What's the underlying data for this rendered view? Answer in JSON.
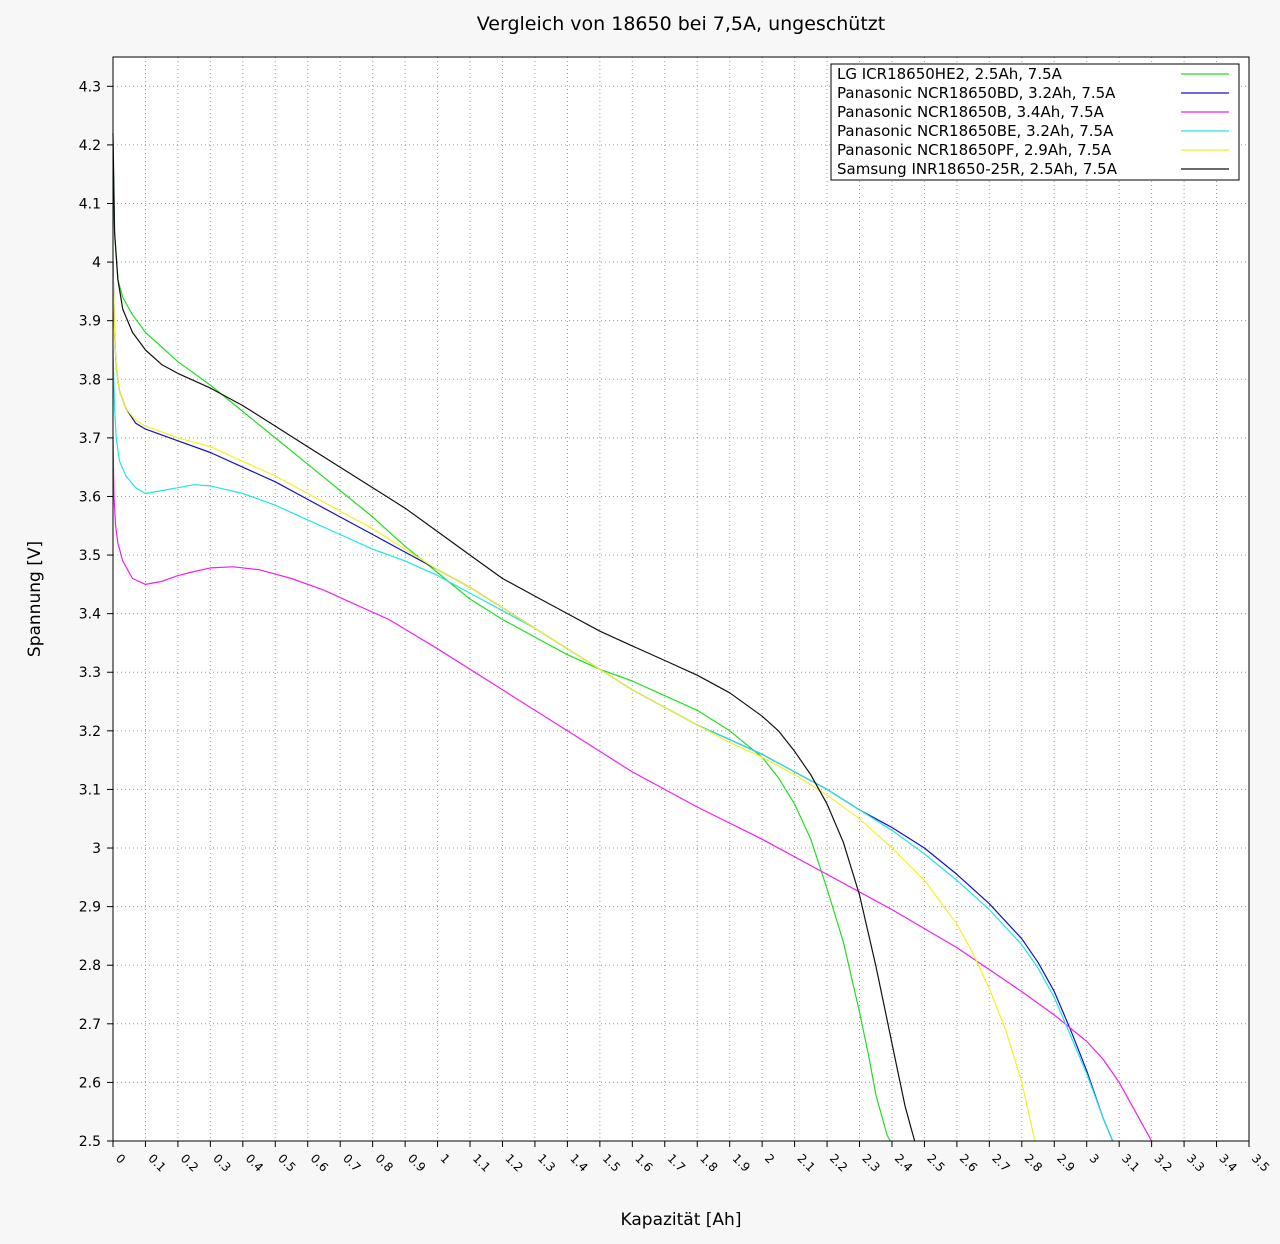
{
  "chart_data": {
    "type": "line",
    "title": "Vergleich von 18650 bei 7,5A, ungeschützt",
    "xlabel": "Kapazität [Ah]",
    "ylabel": "Spannung [V]",
    "xlim": [
      0,
      3.5
    ],
    "ylim": [
      2.5,
      4.35
    ],
    "x_ticks": [
      "0",
      "0.1",
      "0.2",
      "0.3",
      "0.4",
      "0.5",
      "0.6",
      "0.7",
      "0.8",
      "0.9",
      "1",
      "1.1",
      "1.2",
      "1.3",
      "1.4",
      "1.5",
      "1.6",
      "1.7",
      "1.8",
      "1.9",
      "2",
      "2.1",
      "2.2",
      "2.3",
      "2.4",
      "2.5",
      "2.6",
      "2.7",
      "2.8",
      "2.9",
      "3",
      "3.1",
      "3.2",
      "3.3",
      "3.4",
      "3.5"
    ],
    "y_ticks": [
      "2.5",
      "2.6",
      "2.7",
      "2.8",
      "2.9",
      "3",
      "3.1",
      "3.2",
      "3.3",
      "3.4",
      "3.5",
      "3.6",
      "3.7",
      "3.8",
      "3.9",
      "4",
      "4.1",
      "4.2",
      "4.3"
    ],
    "grid": true,
    "legend_position": "top-right",
    "series": [
      {
        "name": "LG ICR18650HE2, 2.5Ah, 7.5A",
        "color": "#22dd22",
        "x": [
          0,
          0.005,
          0.015,
          0.03,
          0.06,
          0.1,
          0.15,
          0.2,
          0.3,
          0.4,
          0.5,
          0.6,
          0.7,
          0.8,
          0.9,
          1.0,
          1.1,
          1.2,
          1.3,
          1.4,
          1.5,
          1.6,
          1.7,
          1.8,
          1.9,
          2.0,
          2.05,
          2.1,
          2.15,
          2.2,
          2.25,
          2.3,
          2.33,
          2.35,
          2.37,
          2.385,
          2.395
        ],
        "y": [
          4.2,
          4.05,
          3.97,
          3.94,
          3.91,
          3.88,
          3.855,
          3.83,
          3.79,
          3.745,
          3.7,
          3.655,
          3.61,
          3.565,
          3.515,
          3.47,
          3.425,
          3.39,
          3.36,
          3.33,
          3.305,
          3.285,
          3.26,
          3.235,
          3.2,
          3.155,
          3.12,
          3.075,
          3.015,
          2.93,
          2.84,
          2.72,
          2.64,
          2.58,
          2.54,
          2.51,
          2.5
        ]
      },
      {
        "name": "Panasonic NCR18650BD, 3.2Ah, 7.5A",
        "color": "#1010cc",
        "x": [
          0,
          0.005,
          0.01,
          0.02,
          0.04,
          0.07,
          0.1,
          0.15,
          0.2,
          0.3,
          0.4,
          0.5,
          0.6,
          0.7,
          0.8,
          0.9,
          1.0,
          1.1,
          1.2,
          1.3,
          1.4,
          1.5,
          1.6,
          1.7,
          1.8,
          1.9,
          2.0,
          2.1,
          2.2,
          2.3,
          2.4,
          2.5,
          2.6,
          2.7,
          2.8,
          2.85,
          2.9,
          2.95,
          3.0,
          3.05,
          3.08
        ],
        "y": [
          4.0,
          3.88,
          3.82,
          3.78,
          3.75,
          3.725,
          3.715,
          3.705,
          3.695,
          3.675,
          3.65,
          3.625,
          3.595,
          3.565,
          3.535,
          3.505,
          3.475,
          3.445,
          3.41,
          3.375,
          3.34,
          3.305,
          3.27,
          3.24,
          3.21,
          3.185,
          3.16,
          3.13,
          3.1,
          3.065,
          3.035,
          3.0,
          2.955,
          2.905,
          2.845,
          2.805,
          2.755,
          2.69,
          2.62,
          2.54,
          2.5
        ]
      },
      {
        "name": "Panasonic NCR18650B, 3.4Ah, 7.5A",
        "color": "#ee22ee",
        "x": [
          0,
          0.003,
          0.008,
          0.015,
          0.03,
          0.06,
          0.1,
          0.15,
          0.2,
          0.25,
          0.3,
          0.37,
          0.45,
          0.55,
          0.65,
          0.75,
          0.85,
          1.0,
          1.2,
          1.4,
          1.6,
          1.8,
          2.0,
          2.2,
          2.4,
          2.6,
          2.8,
          2.9,
          3.0,
          3.05,
          3.1,
          3.15,
          3.2
        ],
        "y": [
          3.7,
          3.6,
          3.55,
          3.52,
          3.49,
          3.46,
          3.45,
          3.455,
          3.465,
          3.472,
          3.478,
          3.48,
          3.475,
          3.46,
          3.44,
          3.415,
          3.39,
          3.34,
          3.27,
          3.2,
          3.13,
          3.07,
          3.015,
          2.955,
          2.895,
          2.83,
          2.755,
          2.715,
          2.67,
          2.64,
          2.6,
          2.55,
          2.5
        ]
      },
      {
        "name": "Panasonic NCR18650BE, 3.2Ah, 7.5A",
        "color": "#22e5e5",
        "x": [
          0,
          0.005,
          0.01,
          0.02,
          0.04,
          0.07,
          0.1,
          0.15,
          0.2,
          0.25,
          0.3,
          0.4,
          0.5,
          0.6,
          0.7,
          0.8,
          0.9,
          1.0,
          1.1,
          1.2,
          1.3,
          1.4,
          1.5,
          1.6,
          1.7,
          1.8,
          1.9,
          2.0,
          2.1,
          2.2,
          2.3,
          2.4,
          2.5,
          2.6,
          2.7,
          2.8,
          2.85,
          2.9,
          2.95,
          3.0,
          3.05,
          3.08
        ],
        "y": [
          3.85,
          3.75,
          3.7,
          3.66,
          3.635,
          3.615,
          3.605,
          3.61,
          3.615,
          3.62,
          3.618,
          3.605,
          3.585,
          3.56,
          3.535,
          3.51,
          3.49,
          3.465,
          3.435,
          3.405,
          3.375,
          3.34,
          3.305,
          3.27,
          3.24,
          3.21,
          3.185,
          3.16,
          3.13,
          3.1,
          3.065,
          3.03,
          2.99,
          2.945,
          2.895,
          2.835,
          2.795,
          2.745,
          2.68,
          2.615,
          2.54,
          2.5
        ]
      },
      {
        "name": "Panasonic NCR18650PF, 2.9Ah, 7.5A",
        "color": "#f2f222",
        "x": [
          0,
          0.005,
          0.01,
          0.02,
          0.04,
          0.07,
          0.1,
          0.15,
          0.2,
          0.3,
          0.4,
          0.5,
          0.6,
          0.7,
          0.8,
          0.9,
          1.0,
          1.1,
          1.2,
          1.3,
          1.4,
          1.5,
          1.6,
          1.7,
          1.8,
          1.9,
          2.0,
          2.1,
          2.2,
          2.3,
          2.4,
          2.5,
          2.6,
          2.65,
          2.7,
          2.75,
          2.8,
          2.82,
          2.84
        ],
        "y": [
          4.0,
          3.88,
          3.82,
          3.78,
          3.75,
          3.73,
          3.72,
          3.71,
          3.7,
          3.685,
          3.66,
          3.635,
          3.605,
          3.575,
          3.545,
          3.51,
          3.475,
          3.445,
          3.41,
          3.375,
          3.34,
          3.305,
          3.27,
          3.24,
          3.21,
          3.18,
          3.155,
          3.125,
          3.09,
          3.05,
          3.0,
          2.945,
          2.87,
          2.82,
          2.76,
          2.69,
          2.6,
          2.55,
          2.5
        ]
      },
      {
        "name": "Samsung INR18650-25R, 2.5Ah, 7.5A",
        "color": "#111111",
        "x": [
          0,
          0.005,
          0.015,
          0.03,
          0.06,
          0.1,
          0.15,
          0.2,
          0.3,
          0.4,
          0.5,
          0.6,
          0.7,
          0.8,
          0.9,
          1.0,
          1.1,
          1.2,
          1.3,
          1.4,
          1.5,
          1.6,
          1.7,
          1.8,
          1.9,
          2.0,
          2.05,
          2.1,
          2.15,
          2.2,
          2.25,
          2.3,
          2.35,
          2.38,
          2.41,
          2.44,
          2.46,
          2.47
        ],
        "y": [
          4.22,
          4.05,
          3.97,
          3.92,
          3.88,
          3.85,
          3.825,
          3.81,
          3.785,
          3.755,
          3.72,
          3.685,
          3.65,
          3.615,
          3.58,
          3.54,
          3.5,
          3.46,
          3.43,
          3.4,
          3.37,
          3.345,
          3.32,
          3.295,
          3.265,
          3.225,
          3.2,
          3.165,
          3.125,
          3.075,
          3.01,
          2.92,
          2.8,
          2.72,
          2.64,
          2.56,
          2.52,
          2.5
        ]
      }
    ]
  }
}
